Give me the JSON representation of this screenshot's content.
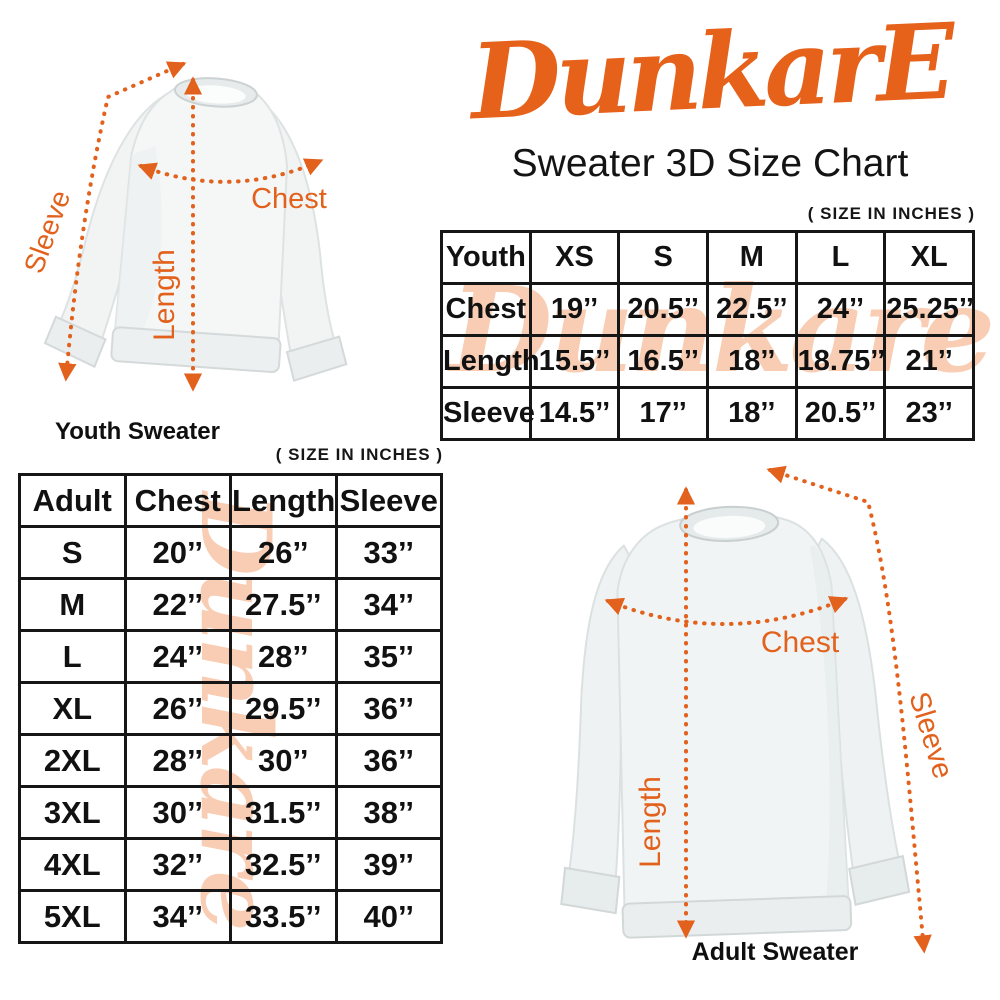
{
  "brand": {
    "logo_text": "DunkarE",
    "subtitle": "Sweater 3D Size Chart"
  },
  "watermark": {
    "text": "Dunkare"
  },
  "colors": {
    "accent_orange": "#e2611c",
    "logo_orange": "#e6621b",
    "watermark_peach": "#f8cdb4",
    "table_border": "#161616"
  },
  "youth_diagram": {
    "caption": "Youth Sweater",
    "labels": {
      "sleeve": "Sleeve",
      "length": "Length",
      "chest": "Chest"
    }
  },
  "adult_diagram": {
    "caption": "Adult Sweater",
    "labels": {
      "sleeve": "Sleeve",
      "length": "Length",
      "chest": "Chest"
    }
  },
  "youth_table": {
    "size_note": "( SIZE IN INCHES )",
    "header": [
      "Youth",
      "XS",
      "S",
      "M",
      "L",
      "XL"
    ],
    "rows": [
      [
        "Chest",
        "19’’",
        "20.5’’",
        "22.5’’",
        "24’’",
        "25.25’’"
      ],
      [
        "Length",
        "15.5’’",
        "16.5’’",
        "18’’",
        "18.75’’",
        "21’’"
      ],
      [
        "Sleeve",
        "14.5’’",
        "17’’",
        "18’’",
        "20.5’’",
        "23’’"
      ]
    ]
  },
  "adult_table": {
    "size_note": "( SIZE IN INCHES )",
    "header": [
      "Adult",
      "Chest",
      "Length",
      "Sleeve"
    ],
    "rows": [
      [
        "S",
        "20’’",
        "26’’",
        "33’’"
      ],
      [
        "M",
        "22’’",
        "27.5’’",
        "34’’"
      ],
      [
        "L",
        "24’’",
        "28’’",
        "35’’"
      ],
      [
        "XL",
        "26’’",
        "29.5’’",
        "36’’"
      ],
      [
        "2XL",
        "28’’",
        "30’’",
        "36’’"
      ],
      [
        "3XL",
        "30’’",
        "31.5’’",
        "38’’"
      ],
      [
        "4XL",
        "32’’",
        "32.5’’",
        "39’’"
      ],
      [
        "5XL",
        "34’’",
        "33.5’’",
        "40’’"
      ]
    ]
  }
}
